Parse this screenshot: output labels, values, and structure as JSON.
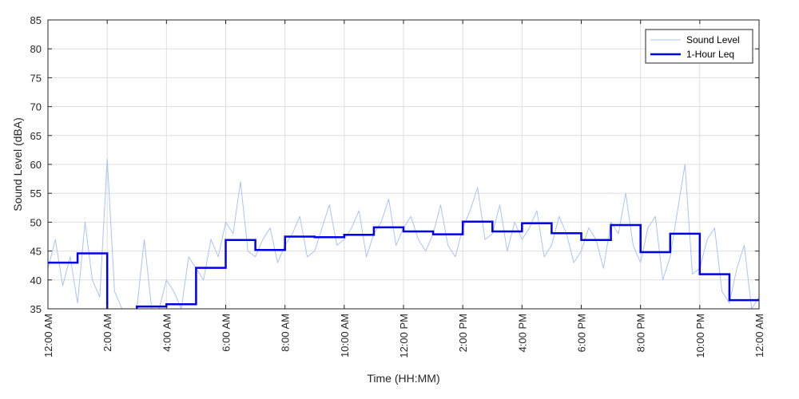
{
  "chart_data": {
    "type": "line",
    "title": "",
    "xlabel": "Time (HH:MM)",
    "ylabel": "Sound Level (dBA)",
    "ylim": [
      35,
      85
    ],
    "yticks": [
      35,
      40,
      45,
      50,
      55,
      60,
      65,
      70,
      75,
      80,
      85
    ],
    "xlim_hours": [
      0,
      24
    ],
    "xtick_labels": [
      "12:00 AM",
      "2:00 AM",
      "4:00 AM",
      "6:00 AM",
      "8:00 AM",
      "10:00 AM",
      "12:00 PM",
      "2:00 PM",
      "4:00 PM",
      "6:00 PM",
      "8:00 PM",
      "10:00 PM",
      "12:00 AM"
    ],
    "grid": true,
    "legend_position": "top-right",
    "series": [
      {
        "name": "Sound Level",
        "color": "#a9c4f3",
        "style": "thin-line",
        "x_hours": [
          0.0,
          0.25,
          0.5,
          0.75,
          1.0,
          1.25,
          1.5,
          1.75,
          2.0,
          2.25,
          2.5,
          2.75,
          3.0,
          3.25,
          3.5,
          3.75,
          4.0,
          4.25,
          4.5,
          4.75,
          5.0,
          5.25,
          5.5,
          5.75,
          6.0,
          6.25,
          6.5,
          6.75,
          7.0,
          7.25,
          7.5,
          7.75,
          8.0,
          8.25,
          8.5,
          8.75,
          9.0,
          9.25,
          9.5,
          9.75,
          10.0,
          10.25,
          10.5,
          10.75,
          11.0,
          11.25,
          11.5,
          11.75,
          12.0,
          12.25,
          12.5,
          12.75,
          13.0,
          13.25,
          13.5,
          13.75,
          14.0,
          14.25,
          14.5,
          14.75,
          15.0,
          15.25,
          15.5,
          15.75,
          16.0,
          16.25,
          16.5,
          16.75,
          17.0,
          17.25,
          17.5,
          17.75,
          18.0,
          18.25,
          18.5,
          18.75,
          19.0,
          19.25,
          19.5,
          19.75,
          20.0,
          20.25,
          20.5,
          20.75,
          21.0,
          21.25,
          21.5,
          21.75,
          22.0,
          22.25,
          22.5,
          22.75,
          23.0,
          23.25,
          23.5,
          23.75,
          24.0
        ],
        "values": [
          42,
          47,
          39,
          44,
          36,
          50,
          40,
          37,
          61,
          38,
          35,
          35,
          35,
          47,
          35,
          35,
          40,
          38,
          35,
          44,
          42,
          40,
          47,
          44,
          50,
          48,
          57,
          45,
          44,
          47,
          49,
          43,
          46,
          48,
          51,
          44,
          45,
          49,
          53,
          46,
          47,
          49,
          52,
          44,
          48,
          50,
          54,
          46,
          49,
          51,
          47,
          45,
          48,
          53,
          46,
          44,
          49,
          52,
          56,
          47,
          48,
          53,
          45,
          50,
          47,
          49,
          52,
          44,
          46,
          51,
          48,
          43,
          45,
          49,
          47,
          42,
          50,
          48,
          55,
          46,
          43,
          49,
          51,
          40,
          44,
          52,
          60,
          41,
          42,
          47,
          49,
          38,
          36,
          42,
          46,
          35,
          37
        ]
      },
      {
        "name": "1-Hour Leq",
        "color": "#0000ee",
        "style": "step",
        "hours": [
          0,
          1,
          2,
          3,
          4,
          5,
          6,
          7,
          8,
          9,
          10,
          11,
          12,
          13,
          14,
          15,
          16,
          17,
          18,
          19,
          20,
          21,
          22,
          23
        ],
        "values": [
          43.0,
          44.6,
          null,
          35.4,
          35.8,
          42.1,
          46.9,
          45.2,
          47.5,
          47.4,
          47.8,
          49.1,
          48.4,
          47.9,
          50.1,
          48.4,
          49.8,
          48.1,
          46.9,
          49.5,
          44.8,
          48.0,
          41.0,
          36.5
        ]
      }
    ]
  }
}
